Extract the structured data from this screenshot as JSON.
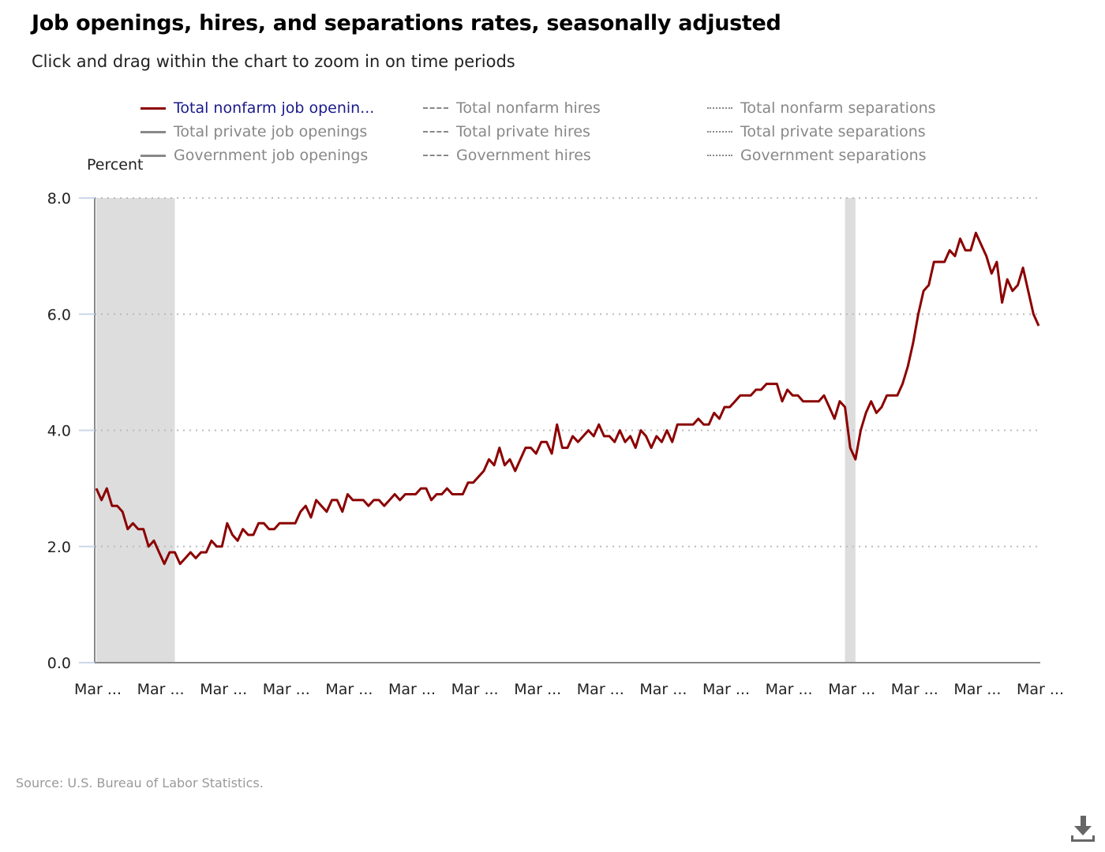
{
  "header": {
    "title": "Job openings, hires, and separations rates, seasonally adjusted",
    "subtitle": "Click and drag within the chart to zoom in on time periods"
  },
  "legend": {
    "items": [
      {
        "label": "Total nonfarm job openin...",
        "style": "solid",
        "color": "#8b0000",
        "active": true
      },
      {
        "label": "Total nonfarm hires",
        "style": "dashed",
        "color": "#888888",
        "active": false
      },
      {
        "label": "Total nonfarm separations",
        "style": "dotted",
        "color": "#888888",
        "active": false
      },
      {
        "label": "Total private job openings",
        "style": "solid",
        "color": "#888888",
        "active": false
      },
      {
        "label": "Total private hires",
        "style": "dashed",
        "color": "#888888",
        "active": false
      },
      {
        "label": "Total private separations",
        "style": "dotted",
        "color": "#888888",
        "active": false
      },
      {
        "label": "Government job openings",
        "style": "solid",
        "color": "#888888",
        "active": false
      },
      {
        "label": "Government hires",
        "style": "dashed",
        "color": "#888888",
        "active": false
      },
      {
        "label": "Government separations",
        "style": "dotted",
        "color": "#888888",
        "active": false
      }
    ]
  },
  "footer": {
    "source": "Source: U.S. Bureau of Labor Statistics.",
    "download_icon": "download-icon"
  },
  "chart_data": {
    "type": "line",
    "title": "Job openings, hires, and separations rates, seasonally adjusted",
    "xlabel": "",
    "ylabel": "Percent",
    "ylim": [
      0,
      8
    ],
    "yticks": [
      "0.0",
      "2.0",
      "4.0",
      "6.0",
      "8.0"
    ],
    "ytick_values": [
      0,
      2,
      4,
      6,
      8
    ],
    "xticks": [
      "Mar ...",
      "Mar ...",
      "Mar ...",
      "Mar ...",
      "Mar ...",
      "Mar ...",
      "Mar ...",
      "Mar ...",
      "Mar ...",
      "Mar ...",
      "Mar ...",
      "Mar ...",
      "Mar ...",
      "Mar ...",
      "Mar ...",
      "Mar ..."
    ],
    "x_start": "Mar 2008",
    "x_frequency": "monthly",
    "grid": true,
    "legend_placement": "top",
    "recessions": [
      {
        "start_index": 0,
        "end_index": 15
      },
      {
        "start_index": 143,
        "end_index": 145
      }
    ],
    "series": [
      {
        "name": "Total nonfarm job openings",
        "color": "#8b0000",
        "values": [
          3.0,
          2.8,
          3.0,
          2.7,
          2.7,
          2.6,
          2.3,
          2.4,
          2.3,
          2.3,
          2.0,
          2.1,
          1.9,
          1.7,
          1.9,
          1.9,
          1.7,
          1.8,
          1.9,
          1.8,
          1.9,
          1.9,
          2.1,
          2.0,
          2.0,
          2.4,
          2.2,
          2.1,
          2.3,
          2.2,
          2.2,
          2.4,
          2.4,
          2.3,
          2.3,
          2.4,
          2.4,
          2.4,
          2.4,
          2.6,
          2.7,
          2.5,
          2.8,
          2.7,
          2.6,
          2.8,
          2.8,
          2.6,
          2.9,
          2.8,
          2.8,
          2.8,
          2.7,
          2.8,
          2.8,
          2.7,
          2.8,
          2.9,
          2.8,
          2.9,
          2.9,
          2.9,
          3.0,
          3.0,
          2.8,
          2.9,
          2.9,
          3.0,
          2.9,
          2.9,
          2.9,
          3.1,
          3.1,
          3.2,
          3.3,
          3.5,
          3.4,
          3.7,
          3.4,
          3.5,
          3.3,
          3.5,
          3.7,
          3.7,
          3.6,
          3.8,
          3.8,
          3.6,
          4.1,
          3.7,
          3.7,
          3.9,
          3.8,
          3.9,
          4.0,
          3.9,
          4.1,
          3.9,
          3.9,
          3.8,
          4.0,
          3.8,
          3.9,
          3.7,
          4.0,
          3.9,
          3.7,
          3.9,
          3.8,
          4.0,
          3.8,
          4.1,
          4.1,
          4.1,
          4.1,
          4.2,
          4.1,
          4.1,
          4.3,
          4.2,
          4.4,
          4.4,
          4.5,
          4.6,
          4.6,
          4.6,
          4.7,
          4.7,
          4.8,
          4.8,
          4.8,
          4.5,
          4.7,
          4.6,
          4.6,
          4.5,
          4.5,
          4.5,
          4.5,
          4.6,
          4.4,
          4.2,
          4.5,
          4.4,
          3.7,
          3.5,
          4.0,
          4.3,
          4.5,
          4.3,
          4.4,
          4.6,
          4.6,
          4.6,
          4.8,
          5.1,
          5.5,
          6.0,
          6.4,
          6.5,
          6.9,
          6.9,
          6.9,
          7.1,
          7.0,
          7.3,
          7.1,
          7.1,
          7.4,
          7.2,
          7.0,
          6.7,
          6.9,
          6.2,
          6.6,
          6.4,
          6.5,
          6.8,
          6.4,
          6.0,
          5.8
        ]
      }
    ]
  }
}
